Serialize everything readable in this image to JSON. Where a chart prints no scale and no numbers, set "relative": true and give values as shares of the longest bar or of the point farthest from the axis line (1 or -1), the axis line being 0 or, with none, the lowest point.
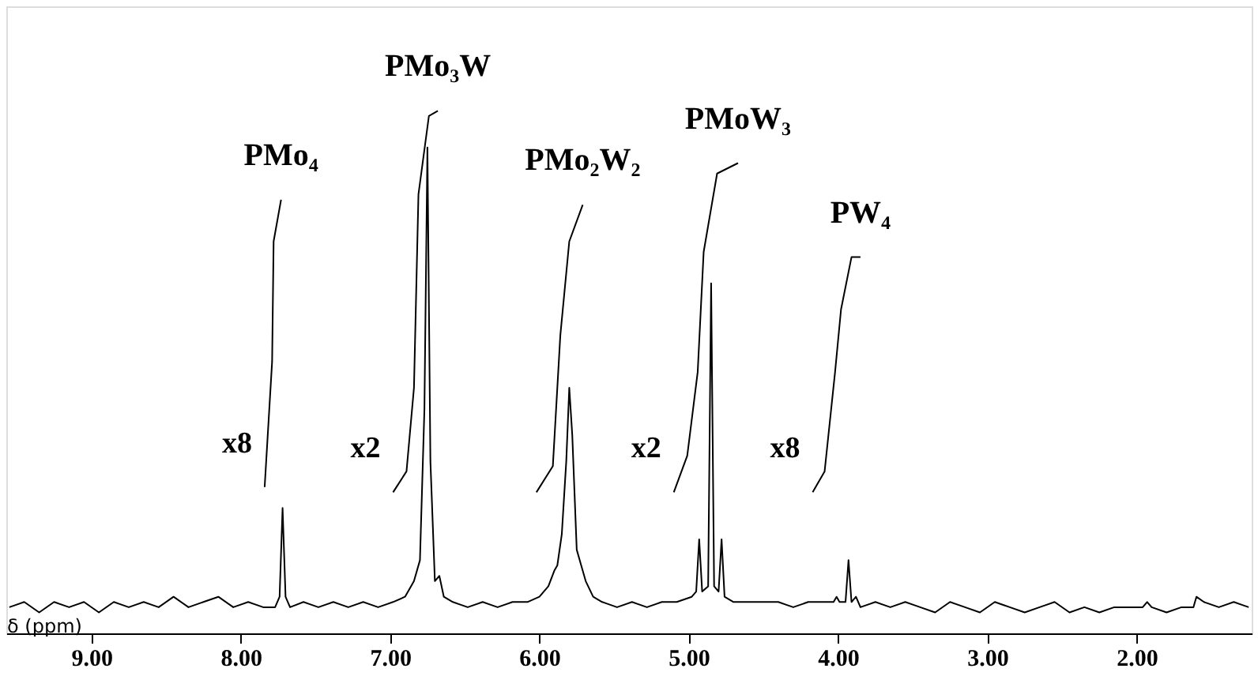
{
  "chart_data": {
    "type": "line",
    "relative": true,
    "xlabel": "δ (ppm)",
    "xlim": [
      9.57,
      1.23
    ],
    "xticks": [
      {
        "value": 9,
        "label": "9.00"
      },
      {
        "value": 8,
        "label": "8.00"
      },
      {
        "value": 7,
        "label": "7.00"
      },
      {
        "value": 6,
        "label": "6.00"
      },
      {
        "value": 5,
        "label": "5.00"
      },
      {
        "value": 4,
        "label": "4.00"
      },
      {
        "value": 3,
        "label": "3.00"
      },
      {
        "value": 2,
        "label": "2.00"
      }
    ],
    "grid": false,
    "legend": false,
    "series": [
      {
        "color": "#000000",
        "x": [
          9.55,
          9.45,
          9.35,
          9.25,
          9.15,
          9.05,
          8.95,
          8.85,
          8.75,
          8.65,
          8.55,
          8.45,
          8.35,
          8.25,
          8.15,
          8.05,
          7.95,
          7.85,
          7.77,
          7.74,
          7.72,
          7.7,
          7.67,
          7.58,
          7.48,
          7.38,
          7.28,
          7.18,
          7.08,
          6.98,
          6.9,
          6.86,
          6.84,
          6.8,
          6.77,
          6.75,
          6.73,
          6.7,
          6.67,
          6.64,
          6.58,
          6.48,
          6.38,
          6.28,
          6.18,
          6.08,
          6.0,
          5.94,
          5.9,
          5.88,
          5.85,
          5.82,
          5.8,
          5.78,
          5.75,
          5.72,
          5.69,
          5.64,
          5.58,
          5.48,
          5.38,
          5.28,
          5.18,
          5.08,
          4.98,
          4.95,
          4.93,
          4.91,
          4.87,
          4.85,
          4.83,
          4.8,
          4.78,
          4.76,
          4.7,
          4.6,
          4.5,
          4.4,
          4.3,
          4.2,
          4.1,
          4.03,
          4.01,
          3.99,
          3.95,
          3.93,
          3.91,
          3.88,
          3.85,
          3.75,
          3.65,
          3.55,
          3.45,
          3.35,
          3.25,
          3.15,
          3.05,
          2.95,
          2.85,
          2.75,
          2.65,
          2.55,
          2.45,
          2.35,
          2.25,
          2.15,
          2.05,
          1.96,
          1.93,
          1.9,
          1.8,
          1.7,
          1.62,
          1.6,
          1.55,
          1.45,
          1.35,
          1.25
        ],
        "values": [
          0.05,
          0.06,
          0.04,
          0.06,
          0.05,
          0.06,
          0.04,
          0.06,
          0.05,
          0.06,
          0.05,
          0.07,
          0.05,
          0.06,
          0.07,
          0.05,
          0.06,
          0.05,
          0.05,
          0.07,
          0.24,
          0.07,
          0.05,
          0.06,
          0.05,
          0.06,
          0.05,
          0.06,
          0.05,
          0.06,
          0.07,
          0.09,
          0.1,
          0.14,
          0.43,
          0.93,
          0.33,
          0.1,
          0.11,
          0.07,
          0.06,
          0.05,
          0.06,
          0.05,
          0.06,
          0.06,
          0.07,
          0.09,
          0.12,
          0.13,
          0.19,
          0.33,
          0.47,
          0.38,
          0.16,
          0.13,
          0.1,
          0.07,
          0.06,
          0.05,
          0.06,
          0.05,
          0.06,
          0.06,
          0.07,
          0.08,
          0.18,
          0.08,
          0.09,
          0.67,
          0.09,
          0.08,
          0.18,
          0.07,
          0.06,
          0.06,
          0.06,
          0.06,
          0.05,
          0.06,
          0.06,
          0.06,
          0.07,
          0.06,
          0.06,
          0.14,
          0.06,
          0.07,
          0.05,
          0.06,
          0.05,
          0.06,
          0.05,
          0.04,
          0.06,
          0.05,
          0.04,
          0.06,
          0.05,
          0.04,
          0.05,
          0.06,
          0.04,
          0.05,
          0.04,
          0.05,
          0.05,
          0.05,
          0.06,
          0.05,
          0.04,
          0.05,
          0.05,
          0.07,
          0.06,
          0.05,
          0.06,
          0.05
        ]
      },
      {
        "name": "PMo₄",
        "color": "#000000",
        "x": [
          7.84,
          7.79,
          7.78,
          7.73
        ],
        "values": [
          0.28,
          0.52,
          0.75,
          0.83
        ]
      },
      {
        "name": "PMo₃W",
        "color": "#000000",
        "x": [
          6.98,
          6.89,
          6.84,
          6.81,
          6.74,
          6.68
        ],
        "values": [
          0.27,
          0.31,
          0.47,
          0.84,
          0.99,
          1.0
        ]
      },
      {
        "name": "PMo₂W₂",
        "color": "#000000",
        "x": [
          6.02,
          5.91,
          5.86,
          5.8,
          5.71
        ],
        "values": [
          0.27,
          0.32,
          0.57,
          0.75,
          0.82
        ]
      },
      {
        "name": "PMoW₃",
        "color": "#000000",
        "x": [
          5.1,
          5.01,
          4.94,
          4.9,
          4.81,
          4.67
        ],
        "values": [
          0.27,
          0.34,
          0.5,
          0.73,
          0.88,
          0.9
        ]
      },
      {
        "name": "PW₄",
        "color": "#000000",
        "x": [
          4.17,
          4.09,
          4.02,
          3.98,
          3.91,
          3.85
        ],
        "values": [
          0.27,
          0.31,
          0.5,
          0.62,
          0.72,
          0.72
        ]
      }
    ],
    "annotations": [
      {
        "text": "x8",
        "x": 7.84,
        "y": 0.28
      },
      {
        "text": "x2",
        "x": 6.98,
        "y": 0.27
      },
      {
        "text": "x2",
        "x": 5.1,
        "y": 0.27
      },
      {
        "text": "x8",
        "x": 4.17,
        "y": 0.27
      }
    ]
  }
}
